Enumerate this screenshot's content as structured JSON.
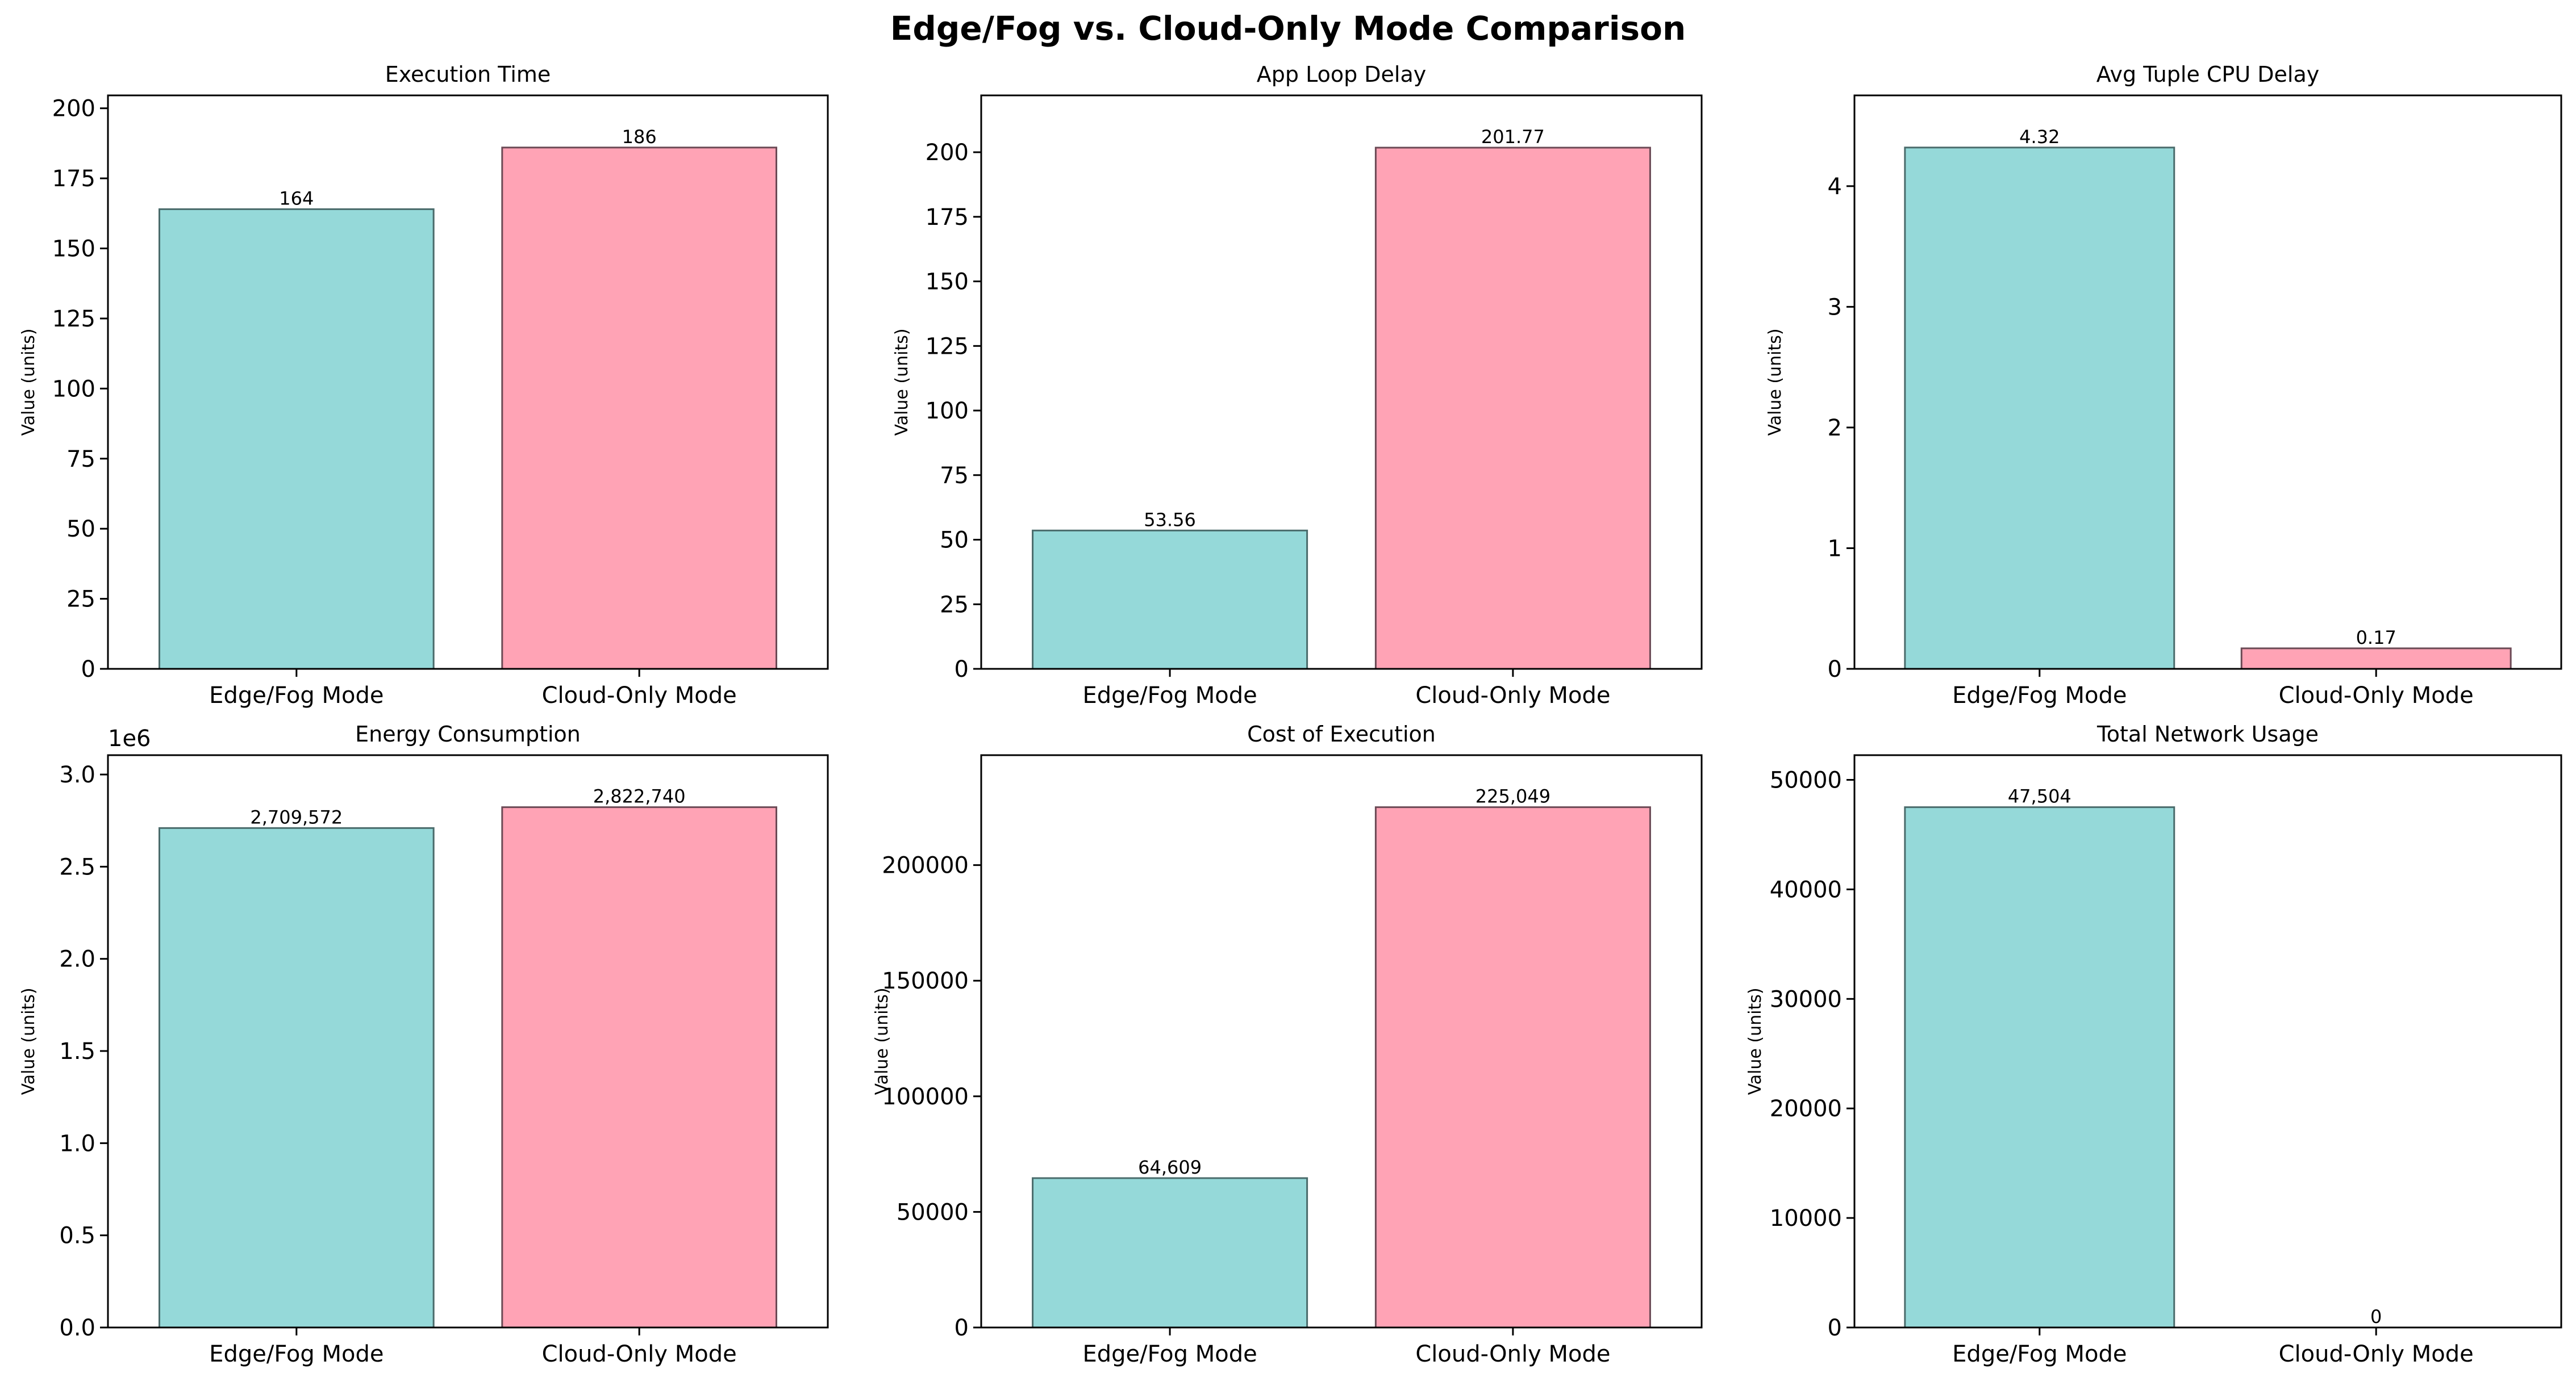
{
  "figure": {
    "title": "Edge/Fog vs. Cloud-Only Mode Comparison",
    "colors": {
      "edge": "#95d9d9",
      "cloud": "#ffa3b5",
      "edge_stroke": "#4a6b6b",
      "cloud_stroke": "#6b4a55"
    }
  },
  "chart_data": [
    {
      "type": "bar",
      "title": "Execution Time",
      "ylabel": "Value (units)",
      "categories": [
        "Edge/Fog Mode",
        "Cloud-Only Mode"
      ],
      "values": [
        164,
        186
      ],
      "value_labels": [
        "164",
        "186"
      ],
      "ylim": [
        0,
        204.6
      ],
      "yticks": [
        0,
        25,
        50,
        75,
        100,
        125,
        150,
        175,
        200
      ],
      "ytick_labels": [
        "0",
        "25",
        "50",
        "75",
        "100",
        "125",
        "150",
        "175",
        "200"
      ],
      "offset_text": ""
    },
    {
      "type": "bar",
      "title": "App Loop Delay",
      "ylabel": "Value (units)",
      "categories": [
        "Edge/Fog Mode",
        "Cloud-Only Mode"
      ],
      "values": [
        53.56,
        201.77
      ],
      "value_labels": [
        "53.56",
        "201.77"
      ],
      "ylim": [
        0,
        222
      ],
      "yticks": [
        0,
        25,
        50,
        75,
        100,
        125,
        150,
        175,
        200
      ],
      "ytick_labels": [
        "0",
        "25",
        "50",
        "75",
        "100",
        "125",
        "150",
        "175",
        "200"
      ],
      "offset_text": ""
    },
    {
      "type": "bar",
      "title": "Avg Tuple CPU Delay",
      "ylabel": "Value (units)",
      "categories": [
        "Edge/Fog Mode",
        "Cloud-Only Mode"
      ],
      "values": [
        4.32,
        0.17
      ],
      "value_labels": [
        "4.32",
        "0.17"
      ],
      "ylim": [
        0,
        4.752
      ],
      "yticks": [
        0,
        1,
        2,
        3,
        4
      ],
      "ytick_labels": [
        "0",
        "1",
        "2",
        "3",
        "4"
      ],
      "offset_text": ""
    },
    {
      "type": "bar",
      "title": "Energy Consumption",
      "ylabel": "Value (units)",
      "categories": [
        "Edge/Fog Mode",
        "Cloud-Only Mode"
      ],
      "values": [
        2709572,
        2822740
      ],
      "value_labels": [
        "2,709,572",
        "2,822,740"
      ],
      "ylim": [
        0,
        3105014
      ],
      "yticks": [
        0,
        500000,
        1000000,
        1500000,
        2000000,
        2500000,
        3000000
      ],
      "ytick_labels": [
        "0.0",
        "0.5",
        "1.0",
        "1.5",
        "2.0",
        "2.5",
        "3.0"
      ],
      "offset_text": "1e6"
    },
    {
      "type": "bar",
      "title": "Cost of Execution",
      "ylabel": "Value (units)",
      "categories": [
        "Edge/Fog Mode",
        "Cloud-Only Mode"
      ],
      "values": [
        64609,
        225049
      ],
      "value_labels": [
        "64,609",
        "225,049"
      ],
      "ylim": [
        0,
        247554
      ],
      "yticks": [
        0,
        50000,
        100000,
        150000,
        200000
      ],
      "ytick_labels": [
        "0",
        "50000",
        "100000",
        "150000",
        "200000"
      ],
      "offset_text": ""
    },
    {
      "type": "bar",
      "title": "Total Network Usage",
      "ylabel": "Value (units)",
      "categories": [
        "Edge/Fog Mode",
        "Cloud-Only Mode"
      ],
      "values": [
        47504,
        0
      ],
      "value_labels": [
        "47,504",
        "0"
      ],
      "ylim": [
        0,
        52254
      ],
      "yticks": [
        0,
        10000,
        20000,
        30000,
        40000,
        50000
      ],
      "ytick_labels": [
        "0",
        "10000",
        "20000",
        "30000",
        "40000",
        "50000"
      ],
      "offset_text": ""
    }
  ]
}
